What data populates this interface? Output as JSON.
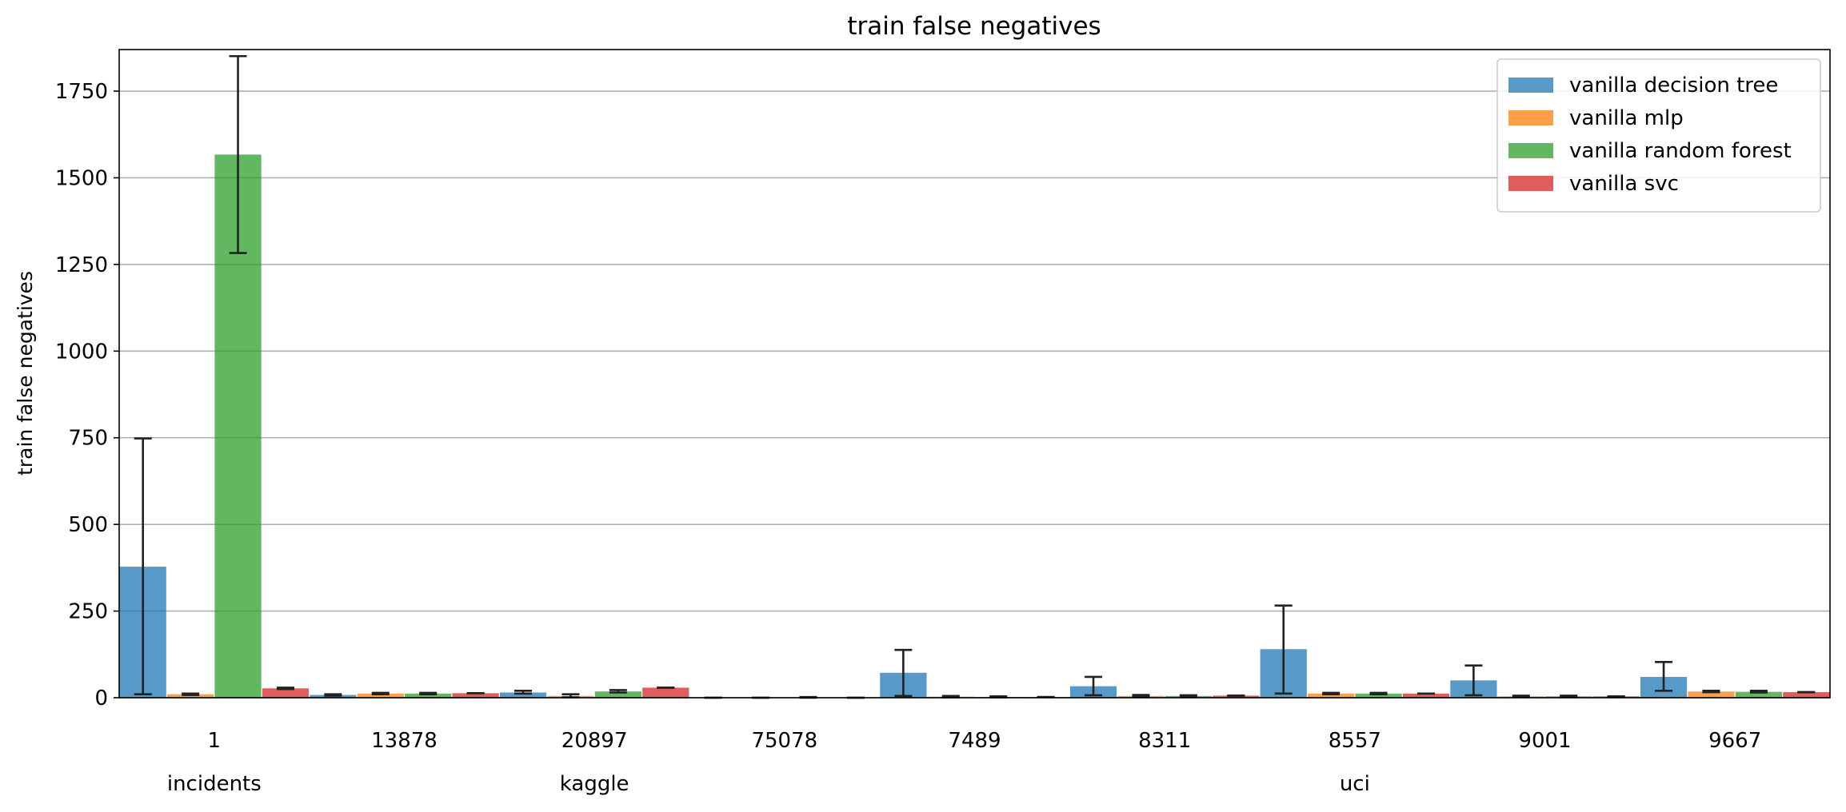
{
  "chart_data": {
    "type": "bar",
    "title": "train false negatives",
    "ylabel": "train false negatives",
    "xlabel": "",
    "ylim": [
      0,
      1870
    ],
    "yticks": [
      0,
      250,
      500,
      750,
      1000,
      1250,
      1500,
      1750
    ],
    "grid": "horizontal",
    "legend_position": "top-right",
    "categories": [
      "1",
      "13878",
      "20897",
      "75078",
      "7489",
      "8311",
      "8557",
      "9001",
      "9667"
    ],
    "groups": [
      {
        "label": "incidents",
        "categories": [
          "1"
        ]
      },
      {
        "label": "kaggle",
        "categories": [
          "13878",
          "20897",
          "75078"
        ]
      },
      {
        "label": "uci",
        "categories": [
          "7489",
          "8311",
          "8557",
          "9001",
          "9667"
        ]
      }
    ],
    "series": [
      {
        "name": "vanilla decision tree",
        "color": "#1f77b4",
        "values": [
          378,
          8,
          15,
          0,
          72,
          33,
          140,
          50,
          60
        ],
        "err_low": [
          10,
          6,
          12,
          0,
          5,
          7,
          12,
          7,
          20
        ],
        "err_high": [
          748,
          10,
          20,
          0,
          138,
          60,
          266,
          93,
          103
        ]
      },
      {
        "name": "vanilla mlp",
        "color": "#ff7f0e",
        "values": [
          10,
          12,
          5,
          0,
          3,
          5,
          12,
          4,
          18
        ],
        "err_low": [
          8,
          10,
          1,
          0,
          1,
          3,
          10,
          2,
          16
        ],
        "err_high": [
          12,
          14,
          10,
          0,
          5,
          8,
          14,
          6,
          20
        ]
      },
      {
        "name": "vanilla random forest",
        "color": "#2ca02c",
        "values": [
          1567,
          12,
          18,
          1,
          2,
          5,
          12,
          4,
          17
        ],
        "err_low": [
          1283,
          10,
          15,
          0,
          1,
          4,
          10,
          3,
          15
        ],
        "err_high": [
          1851,
          14,
          22,
          2,
          4,
          7,
          14,
          6,
          20
        ]
      },
      {
        "name": "vanilla svc",
        "color": "#d62728",
        "values": [
          27,
          13,
          29,
          0,
          2,
          6,
          12,
          4,
          16
        ],
        "err_low": [
          25,
          13,
          29,
          0,
          2,
          6,
          12,
          4,
          16
        ],
        "err_high": [
          29,
          13,
          29,
          0,
          2,
          6,
          12,
          4,
          16
        ]
      }
    ]
  }
}
